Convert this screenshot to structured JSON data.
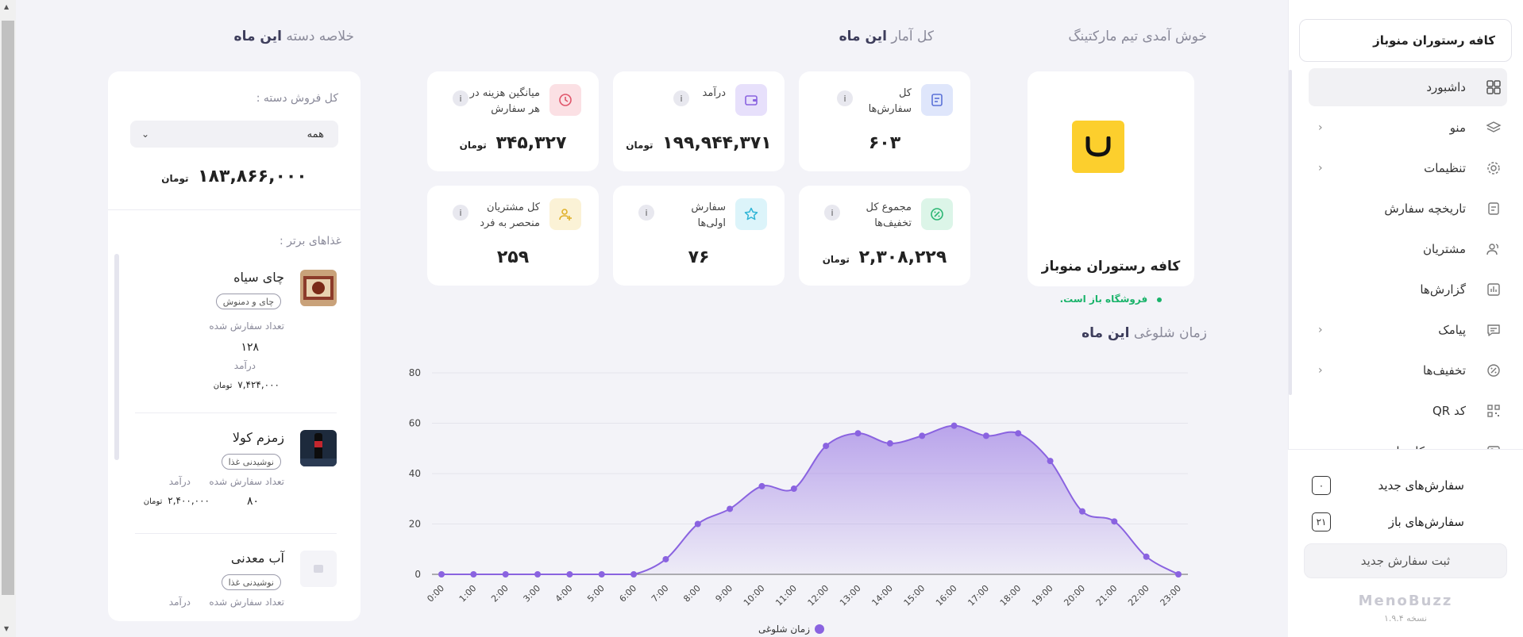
{
  "sidebar": {
    "restaurant_name": "کافه رستوران منوباز",
    "items": [
      {
        "label": "داشبورد",
        "icon": "grid-icon",
        "active": true,
        "has_submenu": false
      },
      {
        "label": "منو",
        "icon": "layers-icon",
        "active": false,
        "has_submenu": true
      },
      {
        "label": "تنظیمات",
        "icon": "gear-icon",
        "active": false,
        "has_submenu": true
      },
      {
        "label": "تاریخچه سفارش",
        "icon": "receipt-icon",
        "active": false,
        "has_submenu": false
      },
      {
        "label": "مشتریان",
        "icon": "users-icon",
        "active": false,
        "has_submenu": false
      },
      {
        "label": "گزارش‌ها",
        "icon": "bar-chart-icon",
        "active": false,
        "has_submenu": false
      },
      {
        "label": "پیامک",
        "icon": "message-icon",
        "active": false,
        "has_submenu": true
      },
      {
        "label": "تخفیف‌ها",
        "icon": "discount-icon",
        "active": false,
        "has_submenu": true
      },
      {
        "label": "کد QR",
        "icon": "qr-icon",
        "active": false,
        "has_submenu": false
      },
      {
        "label": "مدیریت کاربران",
        "icon": "user-manage-icon",
        "active": false,
        "has_submenu": false
      }
    ],
    "new_orders_label": "سفارش‌های جدید",
    "new_orders_count": "۰",
    "open_orders_label": "سفارش‌های باز",
    "open_orders_count": "۲۱",
    "new_order_button": "ثبت سفارش جدید",
    "logo_text": "MenoBuzz",
    "version": "نسخه ۱.۹.۴"
  },
  "headings": {
    "welcome": "خوش آمدی تیم مارکتینگ",
    "stats_prefix": "کل آمار",
    "stats_highlight": "این ماه",
    "category_prefix": "خلاصه دسته",
    "category_highlight": "این ماه",
    "busy_prefix": "زمان شلوغی",
    "busy_highlight": "این ماه"
  },
  "store": {
    "name": "کافه رستوران منوباز",
    "status": "فروشگاه باز است."
  },
  "stats": {
    "total_orders": {
      "title": "کل سفارش‌ها",
      "value": "۶۰۳"
    },
    "revenue": {
      "title": "درآمد",
      "value": "۱۹۹,۹۴۴,۳۷۱",
      "unit": "تومان"
    },
    "avg_cost": {
      "title": "میانگین هزینه در هر سفارش",
      "value": "۳۴۵,۳۲۷",
      "unit": "تومان"
    },
    "total_discounts": {
      "title": "مجموع کل تخفیف‌ها",
      "value": "۲,۳۰۸,۲۲۹",
      "unit": "تومان"
    },
    "first_orders": {
      "title": "سفارش اولی‌ها",
      "value": "۷۶"
    },
    "unique_customers": {
      "title": "کل مشتریان منحصر به فرد",
      "value": "۲۵۹"
    },
    "info_glyph": "i"
  },
  "category": {
    "sales_label": "کل فروش دسته :",
    "select_value": "همه",
    "total_value": "۱۸۳,۸۶۶,۰۰۰",
    "total_unit": "تومان",
    "top_foods_label": "غذاهای برتر :",
    "foods": [
      {
        "name": "چای سیاه",
        "tag": "چای و دمنوش",
        "orders_label": "تعداد سفارش شده",
        "orders": "۱۲۸",
        "revenue_label": "درآمد",
        "revenue": "۷,۴۲۴,۰۰۰",
        "unit": "تومان"
      },
      {
        "name": "زمزم کولا",
        "tag": "نوشیدنی غذا",
        "orders_label": "تعداد سفارش شده",
        "orders": "۸۰",
        "revenue_label": "درآمد",
        "revenue": "۲,۴۰۰,۰۰۰",
        "unit": "تومان"
      },
      {
        "name": "آب معدنی",
        "tag": "نوشیدنی غذا",
        "orders_label": "تعداد سفارش شده",
        "revenue_label": "درآمد"
      }
    ]
  },
  "chart_data": {
    "type": "area",
    "x": [
      "0:00",
      "1:00",
      "2:00",
      "3:00",
      "4:00",
      "5:00",
      "6:00",
      "7:00",
      "8:00",
      "9:00",
      "10:00",
      "11:00",
      "12:00",
      "13:00",
      "14:00",
      "15:00",
      "16:00",
      "17:00",
      "18:00",
      "19:00",
      "20:00",
      "21:00",
      "22:00",
      "23:00"
    ],
    "series": [
      {
        "name": "زمان شلوغی",
        "values": [
          0,
          0,
          0,
          0,
          0,
          0,
          0,
          6,
          20,
          26,
          35,
          34,
          51,
          56,
          52,
          55,
          59,
          55,
          56,
          45,
          25,
          21,
          7,
          0
        ]
      }
    ],
    "ylim": [
      0,
      80
    ],
    "yticks": [
      0,
      20,
      40,
      60,
      80
    ],
    "grid": true,
    "legend": "bottom",
    "color": "#8a63e0"
  },
  "colors": {
    "accent": "#8a63e0",
    "open_status": "#19b36a",
    "logo_bg": "#fccf2d"
  }
}
